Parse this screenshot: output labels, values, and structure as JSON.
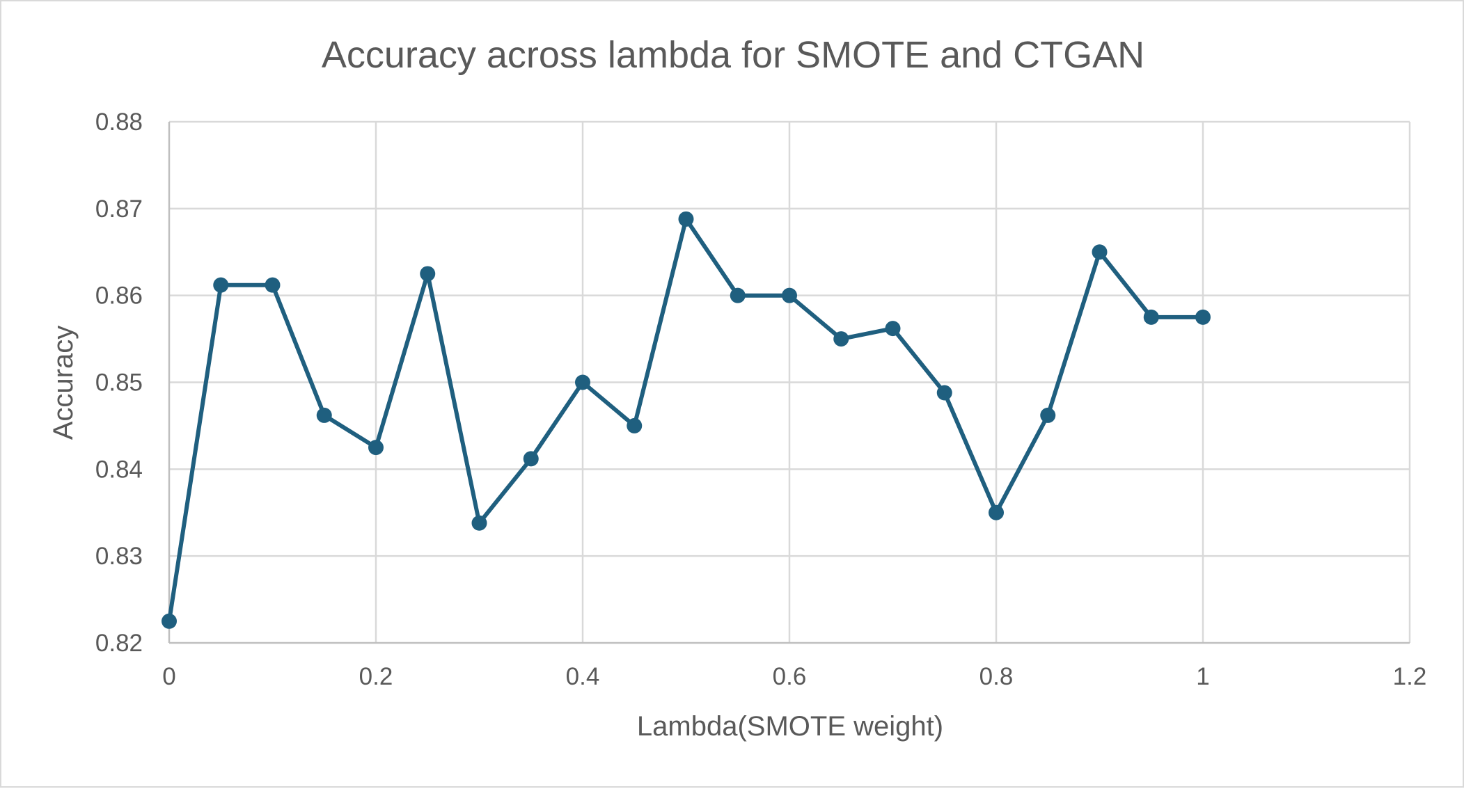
{
  "chart_data": {
    "type": "line",
    "title": "Accuracy across lambda for SMOTE and CTGAN",
    "xlabel": "Lambda(SMOTE weight)",
    "ylabel": "Accuracy",
    "xlim": [
      0,
      1.2
    ],
    "ylim": [
      0.82,
      0.88
    ],
    "x_ticks": [
      "0",
      "0.2",
      "0.4",
      "0.6",
      "0.8",
      "1",
      "1.2"
    ],
    "y_ticks": [
      "0.82",
      "0.83",
      "0.84",
      "0.85",
      "0.86",
      "0.87",
      "0.88"
    ],
    "x_tick_values": [
      0,
      0.2,
      0.4,
      0.6,
      0.8,
      1,
      1.2
    ],
    "y_tick_values": [
      0.82,
      0.83,
      0.84,
      0.85,
      0.86,
      0.87,
      0.88
    ],
    "grid": true,
    "legend": "none",
    "line_color": "#1f5f7f",
    "grid_color": "#d9d9d9",
    "text_color": "#595959",
    "series": [
      {
        "x": [
          0,
          0.05,
          0.1,
          0.15,
          0.2,
          0.25,
          0.3,
          0.35,
          0.4,
          0.45,
          0.5,
          0.55,
          0.6,
          0.65,
          0.7,
          0.75,
          0.8,
          0.85,
          0.9,
          0.95,
          1.0
        ],
        "y": [
          0.8225,
          0.8612,
          0.8612,
          0.8462,
          0.8425,
          0.8625,
          0.8338,
          0.8412,
          0.85,
          0.845,
          0.8688,
          0.86,
          0.86,
          0.855,
          0.8562,
          0.8488,
          0.835,
          0.8462,
          0.865,
          0.8575,
          0.8575
        ]
      }
    ]
  }
}
